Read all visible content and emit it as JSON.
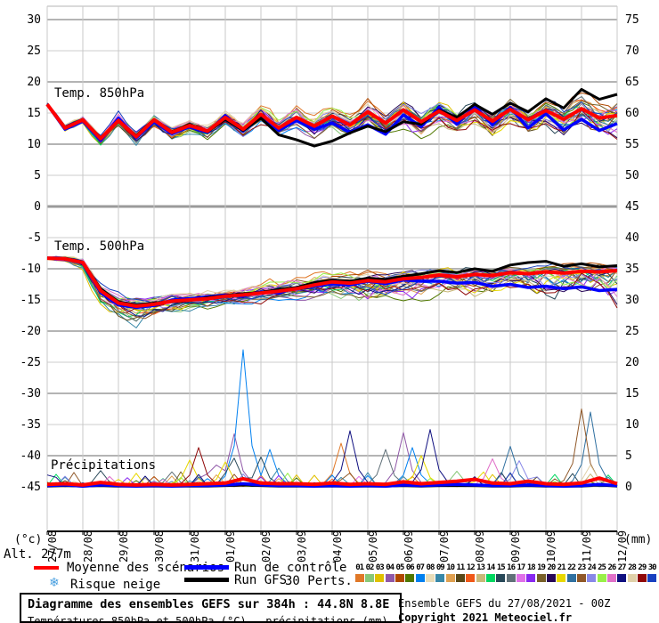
{
  "misc": {
    "altitude": "Alt. 277m",
    "unit_left": "(°c)",
    "unit_right": "(mm)"
  },
  "legend": {
    "mean_label": "Moyenne des scénarios",
    "control_label": "Run de contrôle",
    "gfs_label": "Run GFS",
    "perts_label": "30 Perts.",
    "snow_glyph": "❄",
    "snow_label": "Risque neige",
    "mean_color": "#ff0000",
    "control_color": "#0000ff",
    "gfs_color": "#000000",
    "snow_color": "#4aa0e0"
  },
  "footer": {
    "box_title": "Diagramme des ensembles GEFS sur 384h : 44.8N 8.8E",
    "box_subtitle": "Températures 850hPa et 500hPa (°C) , précipitations (mm)",
    "run_info": "Ensemble GEFS du 27/08/2021 - 00Z",
    "copyright": "Copyright 2021 Meteociel.fr"
  },
  "perts": {
    "numbers": [
      "01",
      "02",
      "03",
      "04",
      "05",
      "06",
      "07",
      "08",
      "09",
      "10",
      "11",
      "12",
      "13",
      "14",
      "15",
      "16",
      "17",
      "18",
      "19",
      "20",
      "21",
      "22",
      "23",
      "24",
      "25",
      "26",
      "27",
      "28",
      "29",
      "30"
    ],
    "colors": [
      "#e07828",
      "#88c878",
      "#e0c000",
      "#9058a8",
      "#b04800",
      "#507800",
      "#0080f0",
      "#e8dcb8",
      "#3888a8",
      "#e0a050",
      "#584818",
      "#f05818",
      "#c8b878",
      "#00d860",
      "#284858",
      "#607078",
      "#e070e8",
      "#8828f0",
      "#786028",
      "#280858",
      "#e8d800",
      "#3070a0",
      "#905828",
      "#8888e8",
      "#98f048",
      "#e070c8",
      "#101080",
      "#e0d0a8",
      "#900808",
      "#1840c0"
    ]
  },
  "chart_data": {
    "type": "line",
    "title": "Diagramme des ensembles GEFS sur 384h : 44.8N 8.8E",
    "x": {
      "tick_labels": [
        "27/08",
        "28/08",
        "29/08",
        "30/08",
        "31/08",
        "01/09",
        "02/09",
        "03/09",
        "04/09",
        "05/09",
        "06/09",
        "07/09",
        "08/09",
        "09/09",
        "10/09",
        "11/09",
        "12/09"
      ],
      "hours_step": 12,
      "total_hours": 384
    },
    "y_left": {
      "unit": "(°c)",
      "ticks": [
        30,
        25,
        20,
        15,
        10,
        5,
        0,
        -5,
        -10,
        -15,
        -20,
        -25,
        -30,
        -35,
        -40,
        -45
      ]
    },
    "y_right": {
      "unit": "(mm)",
      "ticks": [
        75,
        70,
        65,
        60,
        55,
        50,
        45,
        40,
        35,
        30,
        25,
        20,
        15,
        10,
        5,
        0
      ]
    },
    "panels": [
      {
        "id": "t850",
        "label": "Temp. 850hPa",
        "mean": [
          16.4,
          12.6,
          13.9,
          10.9,
          13.8,
          11.2,
          13.9,
          11.9,
          13.0,
          12.1,
          14.3,
          12.4,
          14.8,
          12.6,
          14.3,
          12.9,
          14.5,
          13.1,
          15.2,
          13.4,
          15.5,
          13.6,
          15.3,
          13.8,
          15.5,
          13.7,
          15.6,
          13.9,
          15.4,
          14.0,
          15.7,
          14.2,
          14.6
        ],
        "control": [
          16.4,
          12.4,
          13.7,
          10.6,
          14.2,
          11.0,
          13.6,
          11.7,
          12.8,
          11.9,
          14.6,
          12.1,
          14.4,
          12.2,
          13.8,
          12.4,
          13.4,
          11.9,
          13.1,
          11.6,
          14.7,
          12.8,
          15.9,
          13.2,
          16.1,
          13.1,
          15.9,
          12.6,
          14.9,
          12.3,
          14.0,
          12.2,
          13.3
        ],
        "gfs": [
          16.4,
          12.7,
          14.0,
          11.0,
          13.7,
          11.4,
          14.0,
          12.0,
          13.2,
          12.0,
          14.0,
          12.2,
          14.2,
          11.5,
          10.7,
          9.7,
          10.5,
          11.8,
          12.9,
          12.0,
          13.6,
          13.2,
          15.5,
          14.3,
          16.4,
          14.8,
          16.6,
          15.2,
          17.3,
          15.8,
          18.8,
          17.2,
          18.0
        ],
        "env_min": [
          16.2,
          12.1,
          13.2,
          9.4,
          12.8,
          9.8,
          12.5,
          10.4,
          11.5,
          10.5,
          12.5,
          10.8,
          12.8,
          10.8,
          12.2,
          10.3,
          12.0,
          10.5,
          12.6,
          10.8,
          12.4,
          10.6,
          12.2,
          10.5,
          12.0,
          10.2,
          11.8,
          10.0,
          11.0,
          9.6,
          11.2,
          9.4,
          9.0
        ],
        "env_max": [
          16.6,
          13.2,
          14.6,
          12.0,
          15.9,
          12.6,
          15.2,
          13.3,
          14.6,
          13.6,
          16.8,
          14.6,
          17.4,
          14.8,
          17.0,
          15.0,
          17.2,
          15.2,
          17.9,
          15.4,
          18.1,
          15.6,
          18.3,
          15.8,
          18.2,
          15.9,
          19.0,
          16.1,
          18.5,
          16.4,
          20.3,
          17.6,
          19.8
        ]
      },
      {
        "id": "t500",
        "label": "Temp. 500hPa",
        "mean": [
          -8.3,
          -8.4,
          -9.0,
          -13.5,
          -15.5,
          -16.0,
          -15.7,
          -15.2,
          -15.0,
          -14.8,
          -14.4,
          -14.2,
          -13.9,
          -13.6,
          -13.2,
          -12.6,
          -12.1,
          -12.3,
          -11.9,
          -12.1,
          -11.6,
          -11.4,
          -11.0,
          -11.3,
          -10.9,
          -11.1,
          -10.6,
          -10.8,
          -10.5,
          -10.7,
          -10.4,
          -10.5,
          -10.3
        ],
        "control": [
          -8.3,
          -8.4,
          -9.1,
          -13.8,
          -15.8,
          -16.2,
          -15.9,
          -15.0,
          -14.8,
          -14.5,
          -14.2,
          -14.4,
          -13.7,
          -13.9,
          -13.0,
          -12.8,
          -12.4,
          -12.6,
          -12.0,
          -12.4,
          -11.8,
          -12.0,
          -12.0,
          -12.3,
          -12.2,
          -12.8,
          -12.5,
          -13.0,
          -12.8,
          -13.2,
          -12.9,
          -13.5,
          -13.3
        ],
        "gfs": [
          -8.3,
          -8.3,
          -8.9,
          -13.2,
          -15.3,
          -15.8,
          -15.5,
          -15.3,
          -15.1,
          -14.6,
          -14.3,
          -14.0,
          -13.8,
          -13.3,
          -13.0,
          -12.2,
          -11.8,
          -12.0,
          -11.5,
          -11.7,
          -11.2,
          -10.8,
          -10.3,
          -10.6,
          -10.0,
          -10.4,
          -9.4,
          -9.0,
          -8.8,
          -9.6,
          -9.2,
          -9.7,
          -9.5
        ],
        "env_min": [
          -8.5,
          -8.8,
          -10.5,
          -16.5,
          -18.5,
          -19.8,
          -18.0,
          -17.6,
          -17.0,
          -16.8,
          -16.5,
          -16.2,
          -16.0,
          -15.8,
          -15.5,
          -15.2,
          -15.0,
          -15.4,
          -17.3,
          -15.6,
          -15.2,
          -15.5,
          -14.8,
          -15.2,
          -16.3,
          -15.0,
          -14.6,
          -15.5,
          -17.8,
          -16.0,
          -16.8,
          -15.5,
          -19.0
        ],
        "env_max": [
          -8.1,
          -8.0,
          -8.2,
          -11.0,
          -13.0,
          -13.5,
          -13.5,
          -13.0,
          -13.0,
          -12.6,
          -12.2,
          -12.0,
          -11.3,
          -11.0,
          -10.6,
          -10.2,
          -9.8,
          -10.0,
          -9.8,
          -9.9,
          -9.4,
          -9.6,
          -9.0,
          -9.4,
          -8.9,
          -9.2,
          -8.8,
          -9.0,
          -8.6,
          -8.9,
          -8.5,
          -8.6,
          -8.0
        ]
      },
      {
        "id": "precip",
        "label": "Précipitations",
        "mean": [
          0.4,
          0.5,
          0.3,
          0.7,
          0.4,
          0.3,
          0.4,
          0.3,
          0.4,
          0.5,
          0.6,
          1.3,
          0.6,
          0.5,
          0.5,
          0.4,
          0.6,
          0.4,
          0.5,
          0.4,
          0.8,
          0.5,
          0.7,
          0.9,
          1.2,
          0.6,
          0.5,
          0.9,
          0.5,
          0.4,
          0.6,
          1.4,
          0.5
        ],
        "control": [
          0.2,
          0.3,
          0.1,
          0.3,
          0.2,
          0.1,
          0.2,
          0.1,
          0.2,
          0.2,
          0.3,
          0.5,
          0.3,
          0.2,
          0.2,
          0.1,
          0.2,
          0.1,
          0.2,
          0.1,
          0.3,
          0.2,
          0.3,
          0.4,
          0.3,
          0.2,
          0.2,
          0.3,
          0.2,
          0.1,
          0.2,
          0.4,
          0.2
        ],
        "gfs": [
          0.1,
          0.2,
          0.1,
          0.2,
          0.1,
          0.1,
          0.1,
          0.1,
          0.1,
          0.1,
          0.2,
          0.3,
          0.2,
          0.1,
          0.1,
          0.1,
          0.1,
          0.1,
          0.1,
          0.1,
          0.2,
          0.1,
          0.2,
          0.2,
          0.2,
          0.1,
          0.1,
          0.2,
          0.1,
          0.1,
          0.1,
          0.3,
          0.1
        ],
        "spikes": [
          {
            "hour": 36,
            "member": 15,
            "mm": 2.6
          },
          {
            "hour": 84,
            "member": 16,
            "mm": 2.4
          },
          {
            "hour": 96,
            "member": 21,
            "mm": 4.3
          },
          {
            "hour": 102,
            "member": 29,
            "mm": 6.3
          },
          {
            "hour": 114,
            "member": 4,
            "mm": 3.5
          },
          {
            "hour": 120,
            "member": 21,
            "mm": 4.0
          },
          {
            "hour": 126,
            "member": 4,
            "mm": 8.5
          },
          {
            "hour": 126,
            "member": 15,
            "mm": 4.6
          },
          {
            "hour": 132,
            "member": 7,
            "mm": 22.0
          },
          {
            "hour": 144,
            "member": 15,
            "mm": 4.8
          },
          {
            "hour": 150,
            "member": 7,
            "mm": 6.0
          },
          {
            "hour": 156,
            "member": 9,
            "mm": 3.0
          },
          {
            "hour": 198,
            "member": 1,
            "mm": 7.0
          },
          {
            "hour": 204,
            "member": 27,
            "mm": 9.0
          },
          {
            "hour": 228,
            "member": 16,
            "mm": 6.0
          },
          {
            "hour": 240,
            "member": 4,
            "mm": 8.7
          },
          {
            "hour": 246,
            "member": 7,
            "mm": 6.3
          },
          {
            "hour": 252,
            "member": 21,
            "mm": 5.0
          },
          {
            "hour": 258,
            "member": 27,
            "mm": 9.2
          },
          {
            "hour": 276,
            "member": 2,
            "mm": 2.5
          },
          {
            "hour": 300,
            "member": 26,
            "mm": 4.5
          },
          {
            "hour": 312,
            "member": 22,
            "mm": 6.5
          },
          {
            "hour": 318,
            "member": 24,
            "mm": 4.2
          },
          {
            "hour": 360,
            "member": 23,
            "mm": 12.5
          },
          {
            "hour": 366,
            "member": 22,
            "mm": 12.0
          },
          {
            "hour": 366,
            "member": 28,
            "mm": 3.5
          }
        ]
      }
    ],
    "legend_position": "bottom",
    "grid": true
  }
}
